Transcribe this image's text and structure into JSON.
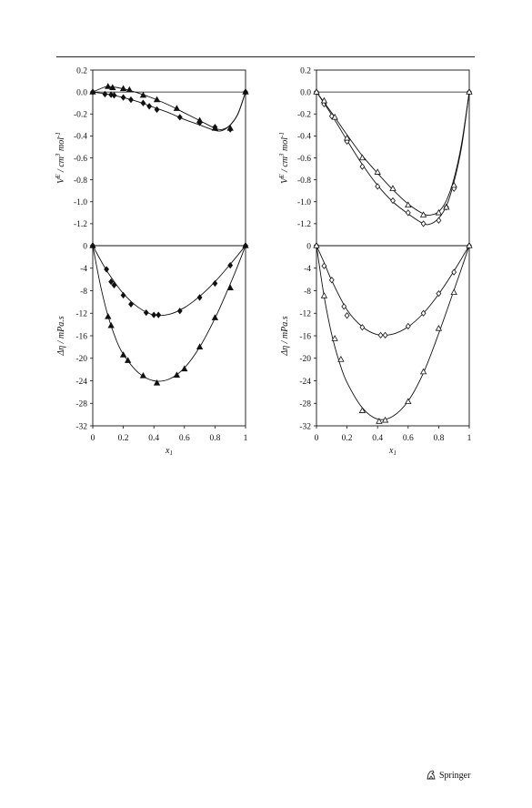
{
  "publisher": "Springer",
  "chart_data": [
    {
      "id": "top-left",
      "type": "scatter",
      "ylabel": "V^E / cm^3 mol^-1",
      "xlim": [
        0,
        1
      ],
      "ylim": [
        -1.4,
        0.2
      ],
      "yticks": [
        0.2,
        0.0,
        -0.2,
        -0.4,
        -0.6,
        -0.8,
        -1.0,
        -1.2
      ],
      "ytick_labels": [
        "0.2",
        "0.0",
        "-0.2",
        "-0.4",
        "-0.6",
        "-0.8",
        "-1.0",
        "-1.2"
      ],
      "zero_line": true,
      "series": [
        {
          "marker": "filled-diamond",
          "points": [
            [
              0.0,
              0.0
            ],
            [
              0.08,
              -0.02
            ],
            [
              0.12,
              -0.025
            ],
            [
              0.14,
              -0.03
            ],
            [
              0.2,
              -0.05
            ],
            [
              0.25,
              -0.07
            ],
            [
              0.33,
              -0.1
            ],
            [
              0.37,
              -0.13
            ],
            [
              0.42,
              -0.16
            ],
            [
              0.57,
              -0.23
            ],
            [
              0.7,
              -0.28
            ],
            [
              0.8,
              -0.32
            ],
            [
              0.9,
              -0.34
            ],
            [
              1.0,
              0.0
            ]
          ],
          "curve": [
            [
              0.0,
              0.0
            ],
            [
              0.1,
              -0.02
            ],
            [
              0.2,
              -0.05
            ],
            [
              0.3,
              -0.09
            ],
            [
              0.4,
              -0.14
            ],
            [
              0.5,
              -0.19
            ],
            [
              0.6,
              -0.25
            ],
            [
              0.7,
              -0.3
            ],
            [
              0.8,
              -0.35
            ],
            [
              0.85,
              -0.35
            ],
            [
              0.9,
              -0.3
            ],
            [
              0.95,
              -0.2
            ],
            [
              1.0,
              0.0
            ]
          ]
        },
        {
          "marker": "filled-triangle",
          "points": [
            [
              0.0,
              0.0
            ],
            [
              0.1,
              0.05
            ],
            [
              0.13,
              0.04
            ],
            [
              0.2,
              0.03
            ],
            [
              0.24,
              0.02
            ],
            [
              0.33,
              -0.03
            ],
            [
              0.42,
              -0.07
            ],
            [
              0.55,
              -0.15
            ],
            [
              0.7,
              -0.26
            ],
            [
              0.8,
              -0.33
            ],
            [
              0.9,
              -0.33
            ],
            [
              1.0,
              0.0
            ]
          ],
          "curve": [
            [
              0.0,
              0.0
            ],
            [
              0.05,
              0.03
            ],
            [
              0.1,
              0.05
            ],
            [
              0.2,
              0.03
            ],
            [
              0.3,
              -0.01
            ],
            [
              0.4,
              -0.06
            ],
            [
              0.5,
              -0.12
            ],
            [
              0.6,
              -0.19
            ],
            [
              0.7,
              -0.26
            ],
            [
              0.8,
              -0.33
            ],
            [
              0.85,
              -0.34
            ],
            [
              0.9,
              -0.3
            ],
            [
              0.95,
              -0.2
            ],
            [
              1.0,
              0.0
            ]
          ]
        }
      ]
    },
    {
      "id": "top-right",
      "type": "scatter",
      "ylabel": "V^E / cm^3 mol^-1",
      "xlim": [
        0,
        1
      ],
      "ylim": [
        -1.4,
        0.2
      ],
      "yticks": [
        0.2,
        0.0,
        -0.2,
        -0.4,
        -0.6,
        -0.8,
        -1.0,
        -1.2
      ],
      "ytick_labels": [
        "0.2",
        "0.0",
        "-0.2",
        "-0.4",
        "-0.6",
        "-0.8",
        "-1.0",
        "-1.2"
      ],
      "zero_line": true,
      "series": [
        {
          "marker": "open-diamond",
          "points": [
            [
              0.0,
              0.0
            ],
            [
              0.05,
              -0.11
            ],
            [
              0.1,
              -0.22
            ],
            [
              0.2,
              -0.45
            ],
            [
              0.3,
              -0.68
            ],
            [
              0.4,
              -0.86
            ],
            [
              0.5,
              -0.99
            ],
            [
              0.6,
              -1.1
            ],
            [
              0.7,
              -1.2
            ],
            [
              0.8,
              -1.17
            ],
            [
              0.85,
              -1.05
            ],
            [
              0.9,
              -0.88
            ],
            [
              1.0,
              0.0
            ]
          ],
          "curve": [
            [
              0.0,
              0.0
            ],
            [
              0.1,
              -0.21
            ],
            [
              0.2,
              -0.44
            ],
            [
              0.3,
              -0.66
            ],
            [
              0.4,
              -0.85
            ],
            [
              0.5,
              -1.0
            ],
            [
              0.6,
              -1.11
            ],
            [
              0.7,
              -1.2
            ],
            [
              0.75,
              -1.2
            ],
            [
              0.8,
              -1.15
            ],
            [
              0.85,
              -1.04
            ],
            [
              0.9,
              -0.82
            ],
            [
              0.95,
              -0.5
            ],
            [
              1.0,
              0.0
            ]
          ]
        },
        {
          "marker": "open-triangle",
          "points": [
            [
              0.0,
              0.0
            ],
            [
              0.05,
              -0.08
            ],
            [
              0.12,
              -0.23
            ],
            [
              0.2,
              -0.42
            ],
            [
              0.3,
              -0.6
            ],
            [
              0.4,
              -0.73
            ],
            [
              0.5,
              -0.88
            ],
            [
              0.6,
              -1.03
            ],
            [
              0.7,
              -1.12
            ],
            [
              0.8,
              -1.1
            ],
            [
              0.85,
              -1.05
            ],
            [
              0.9,
              -0.85
            ],
            [
              1.0,
              0.0
            ]
          ],
          "curve": [
            [
              0.0,
              0.0
            ],
            [
              0.1,
              -0.19
            ],
            [
              0.2,
              -0.39
            ],
            [
              0.3,
              -0.58
            ],
            [
              0.4,
              -0.74
            ],
            [
              0.5,
              -0.89
            ],
            [
              0.6,
              -1.02
            ],
            [
              0.7,
              -1.11
            ],
            [
              0.75,
              -1.12
            ],
            [
              0.8,
              -1.09
            ],
            [
              0.85,
              -0.99
            ],
            [
              0.9,
              -0.79
            ],
            [
              0.95,
              -0.47
            ],
            [
              1.0,
              0.0
            ]
          ]
        }
      ]
    },
    {
      "id": "bottom-left",
      "type": "scatter",
      "ylabel": "Δη / mPa.s",
      "xlabel": "x 1",
      "xlim": [
        0,
        1
      ],
      "ylim": [
        -32,
        0
      ],
      "xticks": [
        0,
        0.2,
        0.4,
        0.6,
        0.8,
        1
      ],
      "xtick_labels": [
        "0",
        "0.2",
        "0.4",
        "0.6",
        "0.8",
        "1"
      ],
      "yticks": [
        0,
        -4,
        -8,
        -12,
        -16,
        -20,
        -24,
        -28,
        -32
      ],
      "ytick_labels": [
        "0",
        "-4",
        "-8",
        "-12",
        "-16",
        "-20",
        "-24",
        "-28",
        "-32"
      ],
      "series": [
        {
          "marker": "filled-diamond",
          "points": [
            [
              0.0,
              0.0
            ],
            [
              0.09,
              -4.2
            ],
            [
              0.12,
              -6.4
            ],
            [
              0.14,
              -7.0
            ],
            [
              0.2,
              -8.8
            ],
            [
              0.25,
              -10.4
            ],
            [
              0.35,
              -11.9
            ],
            [
              0.4,
              -12.3
            ],
            [
              0.43,
              -12.3
            ],
            [
              0.57,
              -11.6
            ],
            [
              0.7,
              -9.2
            ],
            [
              0.8,
              -6.7
            ],
            [
              0.9,
              -3.5
            ],
            [
              1.0,
              0.0
            ]
          ],
          "curve": [
            [
              0.0,
              0.0
            ],
            [
              0.05,
              -2.5
            ],
            [
              0.1,
              -4.8
            ],
            [
              0.2,
              -8.5
            ],
            [
              0.3,
              -11.0
            ],
            [
              0.4,
              -12.3
            ],
            [
              0.5,
              -12.2
            ],
            [
              0.6,
              -11.0
            ],
            [
              0.7,
              -9.0
            ],
            [
              0.8,
              -6.4
            ],
            [
              0.9,
              -3.3
            ],
            [
              1.0,
              0.0
            ]
          ]
        },
        {
          "marker": "filled-triangle",
          "points": [
            [
              0.0,
              0.0
            ],
            [
              0.1,
              -12.6
            ],
            [
              0.12,
              -14.2
            ],
            [
              0.2,
              -19.4
            ],
            [
              0.23,
              -20.4
            ],
            [
              0.33,
              -23.1
            ],
            [
              0.42,
              -24.4
            ],
            [
              0.55,
              -23.0
            ],
            [
              0.6,
              -21.9
            ],
            [
              0.7,
              -18.0
            ],
            [
              0.8,
              -12.8
            ],
            [
              0.9,
              -7.5
            ],
            [
              1.0,
              0.0
            ]
          ],
          "curve": [
            [
              0.0,
              0.0
            ],
            [
              0.05,
              -7.0
            ],
            [
              0.1,
              -12.5
            ],
            [
              0.15,
              -16.5
            ],
            [
              0.2,
              -19.3
            ],
            [
              0.3,
              -22.6
            ],
            [
              0.4,
              -24.0
            ],
            [
              0.5,
              -23.7
            ],
            [
              0.6,
              -21.7
            ],
            [
              0.7,
              -18.0
            ],
            [
              0.8,
              -12.9
            ],
            [
              0.9,
              -6.8
            ],
            [
              0.95,
              -3.5
            ],
            [
              1.0,
              0.0
            ]
          ]
        }
      ]
    },
    {
      "id": "bottom-right",
      "type": "scatter",
      "ylabel": "Δη / mPa.s",
      "xlabel": "x 1",
      "xlim": [
        0,
        1
      ],
      "ylim": [
        -32,
        0
      ],
      "xticks": [
        0,
        0.2,
        0.4,
        0.6,
        0.8,
        1
      ],
      "xtick_labels": [
        "0",
        "0.2",
        "0.4",
        "0.6",
        "0.8",
        "1"
      ],
      "yticks": [
        0,
        -4,
        -8,
        -12,
        -16,
        -20,
        -24,
        -28,
        -32
      ],
      "ytick_labels": [
        "0",
        "-4",
        "-8",
        "-12",
        "-16",
        "-20",
        "-24",
        "-28",
        "-32"
      ],
      "series": [
        {
          "marker": "open-diamond",
          "points": [
            [
              0.0,
              0.0
            ],
            [
              0.05,
              -3.6
            ],
            [
              0.1,
              -6.1
            ],
            [
              0.18,
              -10.8
            ],
            [
              0.2,
              -12.4
            ],
            [
              0.3,
              -14.5
            ],
            [
              0.42,
              -15.9
            ],
            [
              0.45,
              -15.9
            ],
            [
              0.6,
              -14.3
            ],
            [
              0.7,
              -12.0
            ],
            [
              0.8,
              -8.5
            ],
            [
              0.9,
              -4.7
            ],
            [
              1.0,
              0.0
            ]
          ],
          "curve": [
            [
              0.0,
              0.0
            ],
            [
              0.05,
              -3.0
            ],
            [
              0.1,
              -6.2
            ],
            [
              0.2,
              -11.4
            ],
            [
              0.3,
              -14.4
            ],
            [
              0.4,
              -15.8
            ],
            [
              0.5,
              -15.7
            ],
            [
              0.6,
              -14.4
            ],
            [
              0.7,
              -12.0
            ],
            [
              0.8,
              -8.6
            ],
            [
              0.9,
              -4.5
            ],
            [
              1.0,
              0.0
            ]
          ]
        },
        {
          "marker": "open-triangle",
          "points": [
            [
              0.0,
              0.0
            ],
            [
              0.05,
              -8.9
            ],
            [
              0.12,
              -16.5
            ],
            [
              0.16,
              -20.2
            ],
            [
              0.3,
              -29.3
            ],
            [
              0.41,
              -31.2
            ],
            [
              0.45,
              -31.0
            ],
            [
              0.6,
              -27.7
            ],
            [
              0.7,
              -22.4
            ],
            [
              0.8,
              -14.7
            ],
            [
              0.9,
              -8.3
            ],
            [
              1.0,
              0.0
            ]
          ],
          "curve": [
            [
              0.0,
              0.0
            ],
            [
              0.05,
              -9.0
            ],
            [
              0.1,
              -15.8
            ],
            [
              0.15,
              -20.7
            ],
            [
              0.2,
              -24.3
            ],
            [
              0.3,
              -28.8
            ],
            [
              0.4,
              -30.8
            ],
            [
              0.5,
              -30.3
            ],
            [
              0.6,
              -27.6
            ],
            [
              0.7,
              -22.6
            ],
            [
              0.8,
              -15.6
            ],
            [
              0.9,
              -7.9
            ],
            [
              0.95,
              -4.0
            ],
            [
              1.0,
              0.0
            ]
          ]
        }
      ]
    }
  ]
}
